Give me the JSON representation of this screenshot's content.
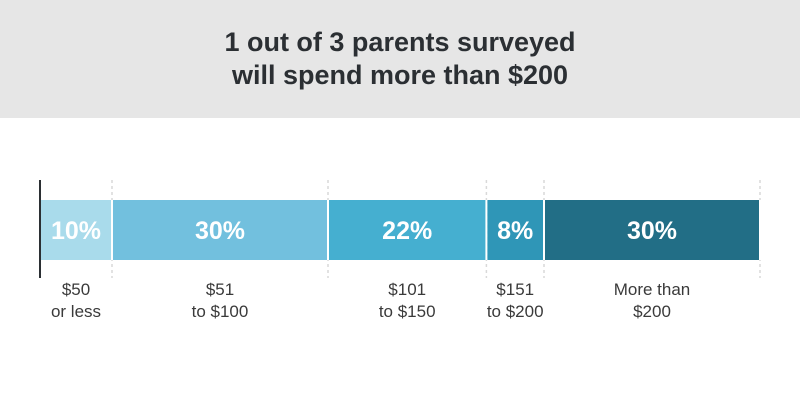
{
  "title_lines": [
    "1 out of 3 parents surveyed",
    "will spend more than $200"
  ],
  "chart_data": {
    "type": "bar",
    "orientation": "horizontal",
    "stacked": true,
    "unit": "%",
    "categories": [
      "$50 or less",
      "$51 to $100",
      "$101 to $150",
      "$151 to $200",
      "More than $200"
    ],
    "values": [
      10,
      30,
      22,
      8,
      30
    ],
    "labels": [
      "10%",
      "30%",
      "22%",
      "8%",
      "30%"
    ],
    "category_lines": [
      [
        "$50",
        "or less"
      ],
      [
        "$51",
        "to $100"
      ],
      [
        "$101",
        "to $150"
      ],
      [
        "$151",
        "to $200"
      ],
      [
        "More than",
        "$200"
      ]
    ],
    "colors": [
      "#a9dbeb",
      "#72c0de",
      "#45afd0",
      "#2f96b7",
      "#226e86"
    ],
    "xlim": [
      0,
      100
    ]
  }
}
